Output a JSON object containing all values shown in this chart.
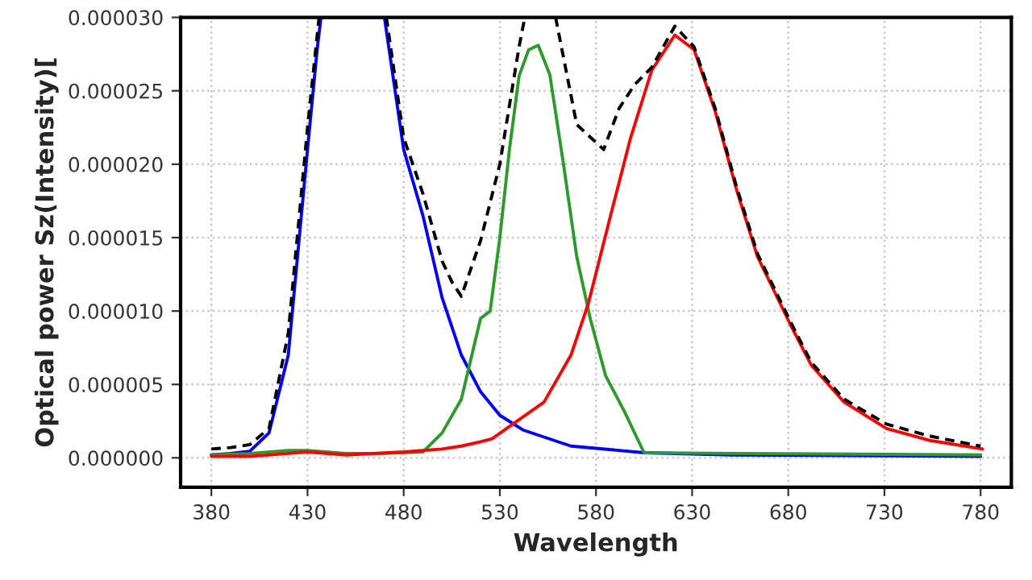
{
  "chart_data": {
    "type": "line",
    "xlabel": "Wavelength",
    "ylabel": "Optical power Sz(Intensity)[",
    "xlim": [
      364,
      796
    ],
    "xticks": [
      380,
      430,
      480,
      530,
      580,
      630,
      680,
      730,
      780
    ],
    "ylim": [
      -2e-06,
      3e-05
    ],
    "yticks": [
      {
        "value": 0,
        "label": "0.000000"
      },
      {
        "value": 5e-06,
        "label": "0.000005"
      },
      {
        "value": 1e-05,
        "label": "0.000010"
      },
      {
        "value": 1.5e-05,
        "label": "0.000015"
      },
      {
        "value": 2e-05,
        "label": "0.000020"
      },
      {
        "value": 2.5e-05,
        "label": "0.000025"
      },
      {
        "value": 3e-05,
        "label": "0.000030"
      }
    ],
    "grid": true,
    "legend": false,
    "marker": "none",
    "series": [
      {
        "color": "#0000ff",
        "line_style": "solid",
        "x": [
          380,
          390,
          400,
          410,
          420,
          425,
          430,
          435,
          437,
          470,
          480,
          490,
          500,
          510,
          520,
          530,
          542,
          567,
          605,
          650,
          780
        ],
        "values": [
          2e-07,
          3e-07,
          4.5e-07,
          1.7e-06,
          7e-06,
          1.4e-05,
          2.1e-05,
          2.78e-05,
          3e-05,
          3e-05,
          2.1e-05,
          1.65e-05,
          1.09e-05,
          7e-06,
          4.5e-06,
          2.9e-06,
          1.9e-06,
          8e-07,
          3.5e-07,
          2e-07,
          1e-07
        ]
      },
      {
        "color": "#2e9a2e",
        "line_style": "solid",
        "x": [
          380,
          400,
          420,
          430,
          450,
          470,
          490,
          500,
          510,
          520,
          525,
          530,
          535,
          540,
          545,
          550,
          556,
          563,
          570,
          577,
          585,
          595,
          605,
          650,
          780
        ],
        "values": [
          2e-07,
          3e-07,
          5e-07,
          5e-07,
          3e-07,
          3e-07,
          4e-07,
          1.7e-06,
          4e-06,
          9.5e-06,
          1e-05,
          1.5e-05,
          2.1e-05,
          2.6e-05,
          2.78e-05,
          2.81e-05,
          2.61e-05,
          2.01e-05,
          1.37e-05,
          9.5e-06,
          5.6e-06,
          3.1e-06,
          3.5e-07,
          3e-07,
          2e-07
        ]
      },
      {
        "color": "#ff0000",
        "line_style": "solid",
        "x": [
          380,
          400,
          420,
          430,
          450,
          480,
          500,
          510,
          520,
          526,
          553,
          567,
          576,
          587,
          598,
          609,
          621,
          631,
          642,
          653,
          664,
          681,
          692,
          709,
          731,
          753,
          781
        ],
        "values": [
          1e-07,
          1e-07,
          3e-07,
          4e-07,
          2e-07,
          4e-07,
          6e-07,
          8e-07,
          1.1e-06,
          1.3e-06,
          3.8e-06,
          7e-06,
          1.05e-05,
          1.62e-05,
          2.18e-05,
          2.64e-05,
          2.88e-05,
          2.78e-05,
          2.36e-05,
          1.83e-05,
          1.37e-05,
          9.1e-06,
          6.3e-06,
          3.8e-06,
          2e-06,
          1.2e-06,
          6e-07
        ]
      },
      {
        "color": "#000000",
        "line_style": "dashed",
        "x": [
          380,
          390,
          400,
          410,
          420,
          430,
          436,
          437,
          470,
          471,
          480,
          490,
          500,
          505,
          510,
          520,
          530,
          540,
          543,
          550,
          559,
          570,
          584,
          592,
          600,
          609,
          621,
          631,
          642,
          653,
          664,
          681,
          692,
          709,
          731,
          753,
          780
        ],
        "values": [
          6e-07,
          7e-07,
          9e-07,
          2e-06,
          8.5e-06,
          2.25e-05,
          3e-05,
          null,
          null,
          3e-05,
          2.18e-05,
          1.8e-05,
          1.34e-05,
          1.2e-05,
          1.1e-05,
          1.48e-05,
          2e-05,
          2.8e-05,
          3e-05,
          null,
          3e-05,
          2.27e-05,
          2.1e-05,
          2.38e-05,
          2.54e-05,
          2.66e-05,
          2.94e-05,
          2.8e-05,
          2.38e-05,
          1.85e-05,
          1.39e-05,
          9.3e-06,
          6.5e-06,
          4e-06,
          2.3e-06,
          1.5e-06,
          8e-07
        ]
      }
    ]
  }
}
